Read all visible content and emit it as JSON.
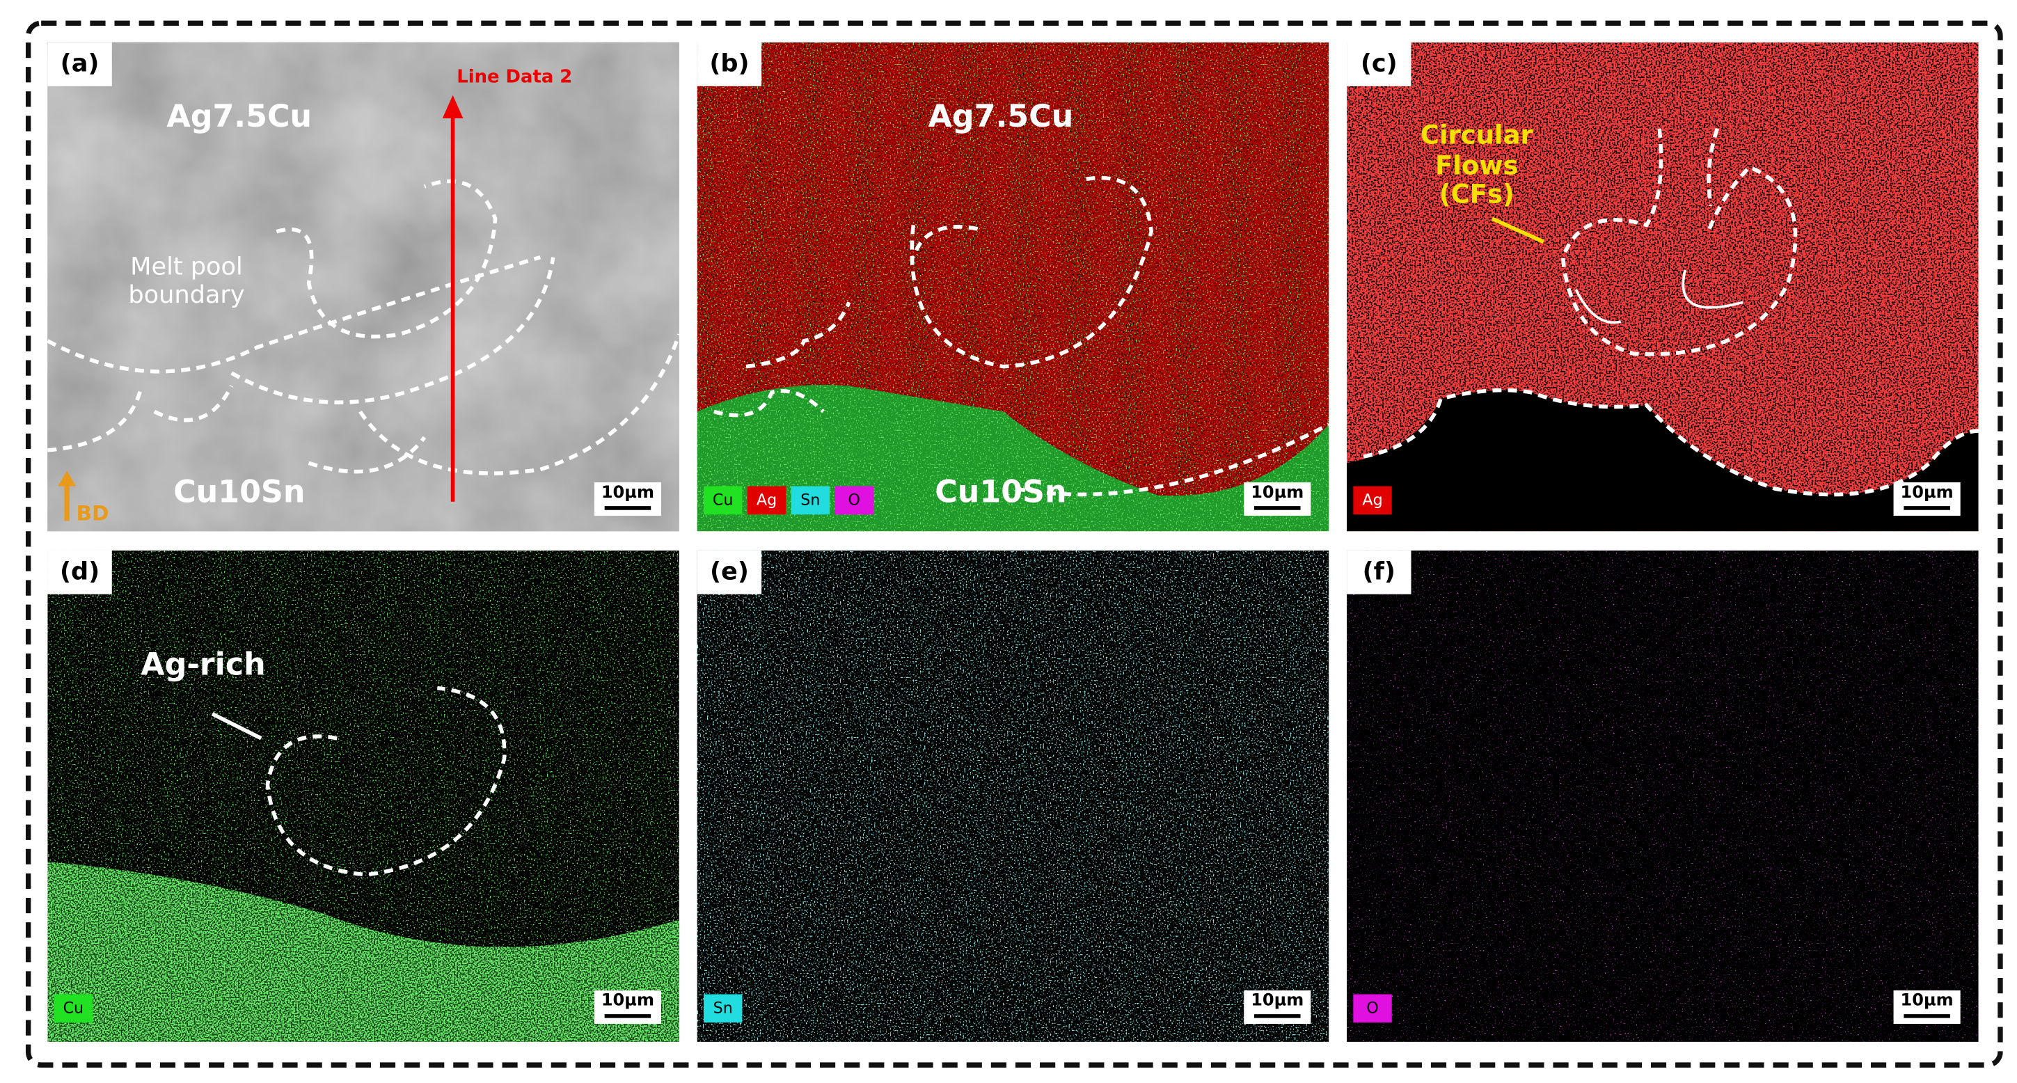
{
  "panels": [
    {
      "label": "(a)",
      "annotations": [
        "Line Data 2",
        "Ag7.5Cu",
        "Melt pool",
        "boundary",
        "Cu10Sn",
        "BD"
      ],
      "scale_bar": "10µm"
    },
    {
      "label": "(b)",
      "annotations": [
        "Ag7.5Cu",
        "Cu10Sn"
      ],
      "legend": [
        "Cu",
        "Ag",
        "Sn",
        "O"
      ],
      "scale_bar": "10µm"
    },
    {
      "label": "(c)",
      "annotations": [
        "Circular",
        "Flows",
        "(CFs)"
      ],
      "legend": [
        "Ag"
      ],
      "scale_bar": "10µm"
    },
    {
      "label": "(d)",
      "annotations": [
        "Ag-rich"
      ],
      "legend": [
        "Cu"
      ],
      "scale_bar": "10µm"
    },
    {
      "label": "(e)",
      "legend": [
        "Sn"
      ],
      "scale_bar": "10µm"
    },
    {
      "label": "(f)",
      "legend": [
        "O"
      ],
      "scale_bar": "10µm"
    }
  ]
}
